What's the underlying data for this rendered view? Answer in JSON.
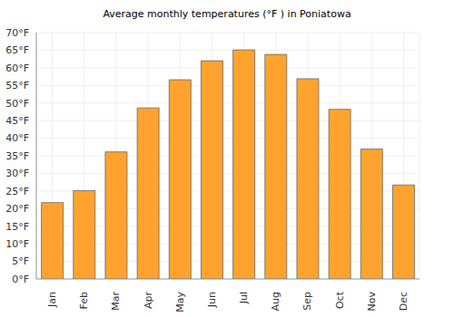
{
  "chart_data": {
    "type": "bar",
    "title": "Average monthly temperatures (°F ) in Poniatowa",
    "categories": [
      "Jan",
      "Feb",
      "Mar",
      "Apr",
      "May",
      "Jun",
      "Jul",
      "Aug",
      "Sep",
      "Oct",
      "Nov",
      "Dec"
    ],
    "values": [
      21.7,
      25.1,
      36.1,
      48.6,
      56.6,
      62.0,
      65.1,
      63.8,
      56.9,
      48.2,
      36.9,
      26.7
    ],
    "color": "#ffa32e",
    "ylim": [
      0,
      70
    ],
    "yticks": [
      {
        "value": 0,
        "label": "0°F"
      },
      {
        "value": 5,
        "label": "5°F"
      },
      {
        "value": 10,
        "label": "10°F"
      },
      {
        "value": 15,
        "label": "15°F"
      },
      {
        "value": 20,
        "label": "20°F"
      },
      {
        "value": 25,
        "label": "25°F"
      },
      {
        "value": 30,
        "label": "30°F"
      },
      {
        "value": 35,
        "label": "35°F"
      },
      {
        "value": 40,
        "label": "40°F"
      },
      {
        "value": 45,
        "label": "45°F"
      },
      {
        "value": 50,
        "label": "50°F"
      },
      {
        "value": 55,
        "label": "55°F"
      },
      {
        "value": 60,
        "label": "60°F"
      },
      {
        "value": 65,
        "label": "65°F"
      },
      {
        "value": 70,
        "label": "70°F"
      }
    ],
    "grid": true
  }
}
